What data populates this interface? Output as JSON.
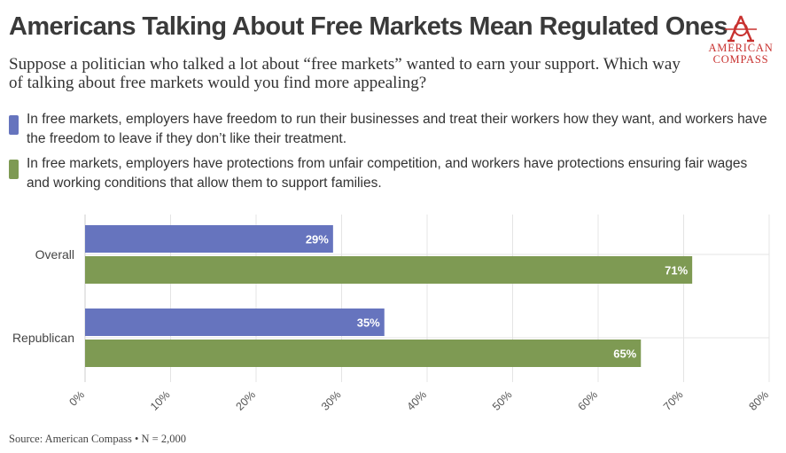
{
  "title": "Americans Talking About Free Markets Mean Regulated Ones",
  "subtitle": "Suppose a politician who talked a lot about “free markets” wanted to earn your support. Which way of talking about free markets would you find more appealing?",
  "logo": {
    "line1": "AMERICAN",
    "line2": "COMPASS",
    "icon": "compass-a-icon",
    "color": "#c8312f"
  },
  "source": "Source: American Compass • N = 2,000",
  "chart_data": {
    "type": "bar",
    "orientation": "horizontal",
    "categories": [
      "Overall",
      "Republican"
    ],
    "series": [
      {
        "name": "In free markets, employers have freedom to run their businesses and treat their workers how they want, and workers have the freedom to leave if they don’t like their treatment.",
        "color": "#6674be",
        "values": [
          29,
          35
        ],
        "labels": [
          "29%",
          "35%"
        ]
      },
      {
        "name": "In free markets, employers have protections from unfair competition, and workers have protections ensuring fair wages and working conditions that allow them to support families.",
        "color": "#7e9a53",
        "values": [
          71,
          65
        ],
        "labels": [
          "71%",
          "65%"
        ]
      }
    ],
    "xlim": [
      0,
      80
    ],
    "xticks": [
      0,
      10,
      20,
      30,
      40,
      50,
      60,
      70,
      80
    ],
    "xtick_labels": [
      "0%",
      "10%",
      "20%",
      "30%",
      "40%",
      "50%",
      "60%",
      "70%",
      "80%"
    ],
    "grid": true,
    "legend": "top-left"
  }
}
